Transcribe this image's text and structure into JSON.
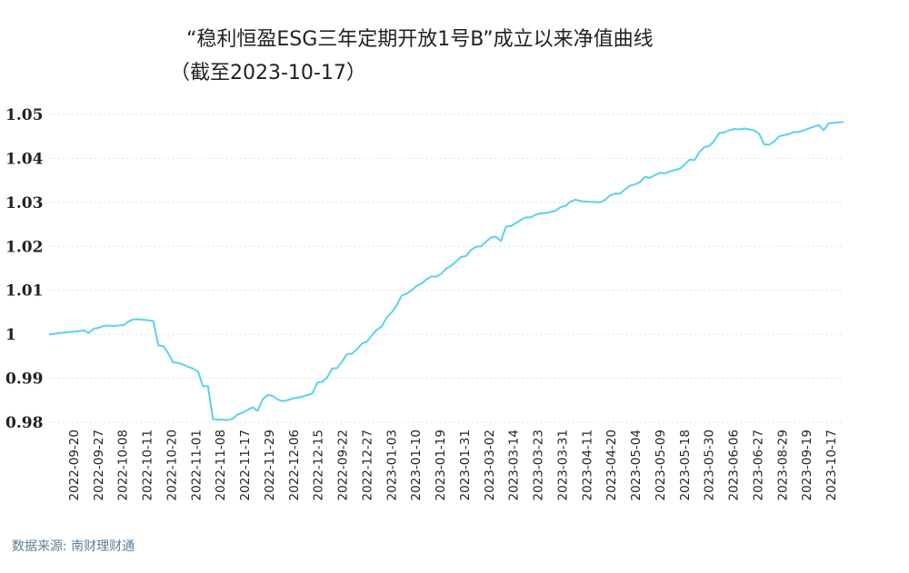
{
  "chart_data": {
    "type": "line",
    "title_line1": "“稳利恒盈ESG三年定期开放1号B”成立以来净值曲线",
    "title_line2": "（截至2023-10-17）",
    "source": "数据来源: 南财理财通",
    "ylim": [
      0.98,
      1.05
    ],
    "yticks": [
      0.98,
      0.99,
      1,
      1.01,
      1.02,
      1.03,
      1.04,
      1.05
    ],
    "ytick_labels": [
      "0.98",
      "0.99",
      "1",
      "1.01",
      "1.02",
      "1.03",
      "1.04",
      "1.05"
    ],
    "grid": true,
    "line_color": "#5bd1ee",
    "xtick_labels": [
      "2022-09-20",
      "2022-09-27",
      "2022-10-08",
      "2022-10-11",
      "2022-10-20",
      "2022-11-01",
      "2022-11-08",
      "2022-11-17",
      "2022-11-29",
      "2022-12-06",
      "2022-12-15",
      "2022-09-22",
      "2022-12-27",
      "2023-01-03",
      "2023-01-10",
      "2023-01-19",
      "2023-01-31",
      "2023-03-02",
      "2023-03-14",
      "2023-03-23",
      "2023-03-31",
      "2023-04-11",
      "2023-04-20",
      "2023-05-04",
      "2023-05-09",
      "2023-05-18",
      "2023-05-30",
      "2023-06-06",
      "2023-06-27",
      "2023-08-29",
      "2023-09-19",
      "2023-10-17"
    ],
    "series": [
      {
        "values": [
          1.0,
          1.0001,
          1.0003,
          1.0004,
          1.0005,
          1.0006,
          1.0007,
          1.0009,
          1.0003,
          1.0013,
          1.0015,
          1.0019,
          1.002,
          1.0019,
          1.002,
          1.0021,
          1.0029,
          1.0034,
          1.0034,
          1.0033,
          1.0032,
          1.003,
          0.9975,
          0.9973,
          0.9957,
          0.9936,
          0.9935,
          0.9931,
          0.9926,
          0.9922,
          0.9915,
          0.9882,
          0.9882,
          0.9807,
          0.9806,
          0.9806,
          0.9805,
          0.9808,
          0.9818,
          0.9822,
          0.9828,
          0.9834,
          0.9826,
          0.9852,
          0.9862,
          0.986,
          0.9852,
          0.9848,
          0.985,
          0.9854,
          0.9856,
          0.9858,
          0.9862,
          0.9865,
          0.989,
          0.9892,
          0.9902,
          0.9922,
          0.9923,
          0.9938,
          0.9955,
          0.9956,
          0.9966,
          0.9979,
          0.9983,
          0.9998,
          1.001,
          1.0018,
          1.0038,
          1.005,
          1.0066,
          1.0088,
          1.0092,
          1.01,
          1.011,
          1.0115,
          1.0125,
          1.0132,
          1.0131,
          1.0138,
          1.015,
          1.0156,
          1.0166,
          1.0176,
          1.0178,
          1.0192,
          1.0199,
          1.02,
          1.0211,
          1.022,
          1.0222,
          1.0212,
          1.0245,
          1.0246,
          1.0253,
          1.026,
          1.0266,
          1.0266,
          1.0272,
          1.0275,
          1.0276,
          1.0278,
          1.0281,
          1.0289,
          1.0292,
          1.0302,
          1.0306,
          1.0303,
          1.0302,
          1.0301,
          1.0301,
          1.03,
          1.0306,
          1.0316,
          1.032,
          1.032,
          1.033,
          1.0338,
          1.0341,
          1.0346,
          1.0358,
          1.0356,
          1.0362,
          1.0367,
          1.0366,
          1.037,
          1.0374,
          1.0376,
          1.0386,
          1.0397,
          1.0396,
          1.0415,
          1.0426,
          1.0428,
          1.0441,
          1.0458,
          1.0459,
          1.0464,
          1.0467,
          1.0466,
          1.0468,
          1.0466,
          1.0464,
          1.0456,
          1.0432,
          1.0431,
          1.0438,
          1.045,
          1.0453,
          1.0455,
          1.046,
          1.046,
          1.0464,
          1.0468,
          1.0472,
          1.0476,
          1.0464,
          1.048,
          1.0481,
          1.0482,
          1.0483
        ]
      }
    ]
  }
}
